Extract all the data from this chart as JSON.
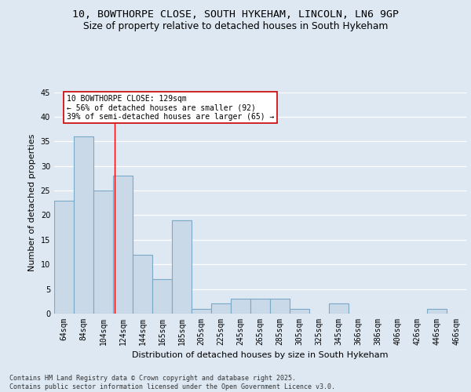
{
  "title_line1": "10, BOWTHORPE CLOSE, SOUTH HYKEHAM, LINCOLN, LN6 9GP",
  "title_line2": "Size of property relative to detached houses in South Hykeham",
  "xlabel": "Distribution of detached houses by size in South Hykeham",
  "ylabel": "Number of detached properties",
  "footer": "Contains HM Land Registry data © Crown copyright and database right 2025.\nContains public sector information licensed under the Open Government Licence v3.0.",
  "categories": [
    "64sqm",
    "84sqm",
    "104sqm",
    "124sqm",
    "144sqm",
    "165sqm",
    "185sqm",
    "205sqm",
    "225sqm",
    "245sqm",
    "265sqm",
    "285sqm",
    "305sqm",
    "325sqm",
    "345sqm",
    "366sqm",
    "386sqm",
    "406sqm",
    "426sqm",
    "446sqm",
    "466sqm"
  ],
  "values": [
    23,
    36,
    25,
    28,
    12,
    7,
    19,
    1,
    2,
    3,
    3,
    3,
    1,
    0,
    2,
    0,
    0,
    0,
    0,
    1,
    0
  ],
  "bar_color": "#c9d9e8",
  "bar_edgecolor": "#7aaac8",
  "bar_linewidth": 0.8,
  "background_color": "#dde8f3",
  "grid_color": "#ffffff",
  "redline_x": 2.58,
  "annotation_text": "10 BOWTHORPE CLOSE: 129sqm\n← 56% of detached houses are smaller (92)\n39% of semi-detached houses are larger (65) →",
  "annotation_box_color": "#ffffff",
  "annotation_box_edgecolor": "#cc0000",
  "ylim": [
    0,
    45
  ],
  "yticks": [
    0,
    5,
    10,
    15,
    20,
    25,
    30,
    35,
    40,
    45
  ],
  "title_fontsize": 9.5,
  "subtitle_fontsize": 8.8,
  "axis_label_fontsize": 8.0,
  "tick_fontsize": 7.0,
  "annotation_fontsize": 7.0,
  "footer_fontsize": 6.0
}
